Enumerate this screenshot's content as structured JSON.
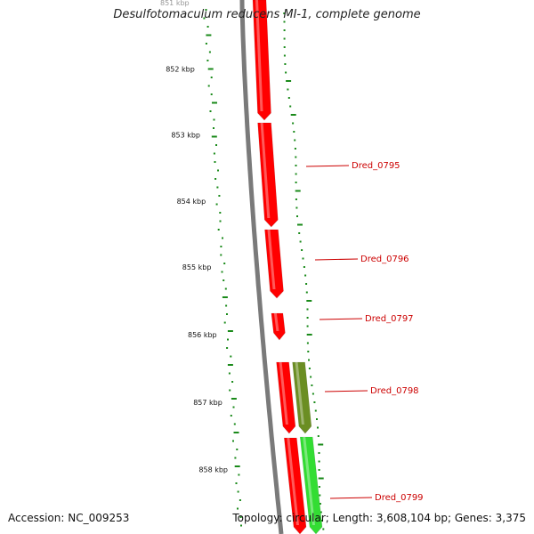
{
  "title": "Desulfotomaculum reducens MI-1, complete genome",
  "footer": {
    "accession": "Accession: NC_009253",
    "summary": "Topology: circular; Length: 3,608,104 bp; Genes: 3,375"
  },
  "colors": {
    "backbone": "#7a7a7a",
    "cds_red": "#ff0000",
    "cds_olive": "#6b8e23",
    "cds_green": "#33dd33",
    "gc_tick": "#1a8a1a",
    "gene_label": "#cc0000"
  },
  "scale_ticks": [
    "851 kbp",
    "852 kbp",
    "853 kbp",
    "854 kbp",
    "855 kbp",
    "856 kbp",
    "857 kbp",
    "858 kbp"
  ],
  "genes": [
    {
      "label": "",
      "lane": "red"
    },
    {
      "label": "Dred_0795",
      "lane": "red"
    },
    {
      "label": "Dred_0796",
      "lane": "red"
    },
    {
      "label": "Dred_0797",
      "lane": "red"
    },
    {
      "label": "Dred_0798",
      "lane": "red"
    },
    {
      "label": "",
      "lane": "olive"
    },
    {
      "label": "Dred_0799",
      "lane": "red"
    },
    {
      "label": "",
      "lane": "green"
    }
  ]
}
